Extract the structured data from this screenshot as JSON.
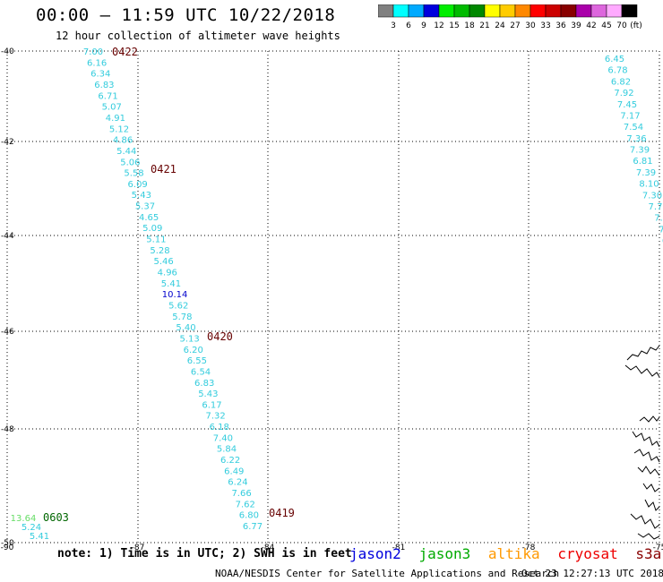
{
  "header": {
    "title": "00:00 – 11:59 UTC 10/22/2018",
    "subtitle": "12 hour collection of altimeter wave heights"
  },
  "colorbar": {
    "unit": "(ft)",
    "swatches": [
      {
        "color": "#808080",
        "label": "3"
      },
      {
        "color": "#00ffff",
        "label": "6"
      },
      {
        "color": "#00aaff",
        "label": "9"
      },
      {
        "color": "#0000dd",
        "label": "12"
      },
      {
        "color": "#00ee00",
        "label": "15"
      },
      {
        "color": "#00bb00",
        "label": "18"
      },
      {
        "color": "#008800",
        "label": "21"
      },
      {
        "color": "#ffff00",
        "label": "24"
      },
      {
        "color": "#ffcc00",
        "label": "27"
      },
      {
        "color": "#ff8800",
        "label": "30"
      },
      {
        "color": "#ff0000",
        "label": "33"
      },
      {
        "color": "#cc0000",
        "label": "36"
      },
      {
        "color": "#880000",
        "label": "39"
      },
      {
        "color": "#aa00aa",
        "label": "42"
      },
      {
        "color": "#dd66dd",
        "label": "45"
      },
      {
        "color": "#ffaaff",
        "label": "70"
      },
      {
        "color": "#000000",
        "label": ""
      }
    ]
  },
  "axes": {
    "lon_ticks": [
      "-90",
      "-87",
      "-84",
      "-81",
      "-78",
      "-75"
    ],
    "lat_ticks": [
      "-40",
      "-42",
      "-44",
      "-46",
      "-48",
      "-50"
    ]
  },
  "colors": {
    "light_cyan": "#33ccdd",
    "mid_blue": "#0000cc",
    "dark_red": "#660000",
    "dark_green": "#006600",
    "light_green": "#66dd66",
    "jason2": "#0000dd",
    "jason3": "#00aa00",
    "altika": "#ff9900",
    "cryosat": "#ee0000",
    "s3a": "#880000"
  },
  "passes": [
    {
      "time": "0422",
      "color": "dark_red"
    },
    {
      "time": "0421",
      "color": "dark_red"
    },
    {
      "time": "0420",
      "color": "dark_red"
    },
    {
      "time": "0419",
      "color": "dark_red"
    },
    {
      "time": "0603",
      "color": "dark_green"
    }
  ],
  "tracks": {
    "main": [
      {
        "v": "7.00",
        "c": "light_cyan"
      },
      {
        "v": "6.16",
        "c": "light_cyan"
      },
      {
        "v": "6.34",
        "c": "light_cyan"
      },
      {
        "v": "6.83",
        "c": "light_cyan"
      },
      {
        "v": "6.71",
        "c": "light_cyan"
      },
      {
        "v": "5.07",
        "c": "light_cyan"
      },
      {
        "v": "4.91",
        "c": "light_cyan"
      },
      {
        "v": "5.12",
        "c": "light_cyan"
      },
      {
        "v": "4.86",
        "c": "light_cyan"
      },
      {
        "v": "5.44",
        "c": "light_cyan"
      },
      {
        "v": "5.06",
        "c": "light_cyan"
      },
      {
        "v": "5.58",
        "c": "light_cyan"
      },
      {
        "v": "6.09",
        "c": "light_cyan"
      },
      {
        "v": "5.43",
        "c": "light_cyan"
      },
      {
        "v": "5.37",
        "c": "light_cyan"
      },
      {
        "v": "4.65",
        "c": "light_cyan"
      },
      {
        "v": "5.09",
        "c": "light_cyan"
      },
      {
        "v": "5.11",
        "c": "light_cyan"
      },
      {
        "v": "5.28",
        "c": "light_cyan"
      },
      {
        "v": "5.46",
        "c": "light_cyan"
      },
      {
        "v": "4.96",
        "c": "light_cyan"
      },
      {
        "v": "5.41",
        "c": "light_cyan"
      },
      {
        "v": "10.14",
        "c": "mid_blue"
      },
      {
        "v": "5.62",
        "c": "light_cyan"
      },
      {
        "v": "5.78",
        "c": "light_cyan"
      },
      {
        "v": "5.40",
        "c": "light_cyan"
      },
      {
        "v": "5.13",
        "c": "light_cyan"
      },
      {
        "v": "6.20",
        "c": "light_cyan"
      },
      {
        "v": "6.55",
        "c": "light_cyan"
      },
      {
        "v": "6.54",
        "c": "light_cyan"
      },
      {
        "v": "6.83",
        "c": "light_cyan"
      },
      {
        "v": "5.43",
        "c": "light_cyan"
      },
      {
        "v": "6.17",
        "c": "light_cyan"
      },
      {
        "v": "7.32",
        "c": "light_cyan"
      },
      {
        "v": "6.18",
        "c": "light_cyan"
      },
      {
        "v": "7.40",
        "c": "light_cyan"
      },
      {
        "v": "5.84",
        "c": "light_cyan"
      },
      {
        "v": "6.22",
        "c": "light_cyan"
      },
      {
        "v": "6.49",
        "c": "light_cyan"
      },
      {
        "v": "6.24",
        "c": "light_cyan"
      },
      {
        "v": "7.66",
        "c": "light_cyan"
      },
      {
        "v": "7.62",
        "c": "light_cyan"
      },
      {
        "v": "6.80",
        "c": "light_cyan"
      },
      {
        "v": "6.77",
        "c": "light_cyan"
      }
    ],
    "right": [
      {
        "v": "6.45",
        "c": "light_cyan"
      },
      {
        "v": "6.78",
        "c": "light_cyan"
      },
      {
        "v": "6.82",
        "c": "light_cyan"
      },
      {
        "v": "7.92",
        "c": "light_cyan"
      },
      {
        "v": "7.45",
        "c": "light_cyan"
      },
      {
        "v": "7.17",
        "c": "light_cyan"
      },
      {
        "v": "7.54",
        "c": "light_cyan"
      },
      {
        "v": "7.36",
        "c": "light_cyan"
      },
      {
        "v": "7.39",
        "c": "light_cyan"
      },
      {
        "v": "6.81",
        "c": "light_cyan"
      },
      {
        "v": "7.39",
        "c": "light_cyan"
      },
      {
        "v": "8.10",
        "c": "light_cyan"
      },
      {
        "v": "7.30",
        "c": "light_cyan"
      },
      {
        "v": "7.7",
        "c": "light_cyan"
      },
      {
        "v": "7.",
        "c": "light_cyan"
      },
      {
        "v": "7",
        "c": "light_cyan"
      },
      {
        "v": "6",
        "c": "light_cyan"
      }
    ],
    "bottom_left": [
      {
        "v": "13.64",
        "c": "light_green"
      },
      {
        "v": "5.24",
        "c": "light_cyan"
      },
      {
        "v": "5.41",
        "c": "light_cyan"
      }
    ]
  },
  "footer": {
    "note": "note: 1) Time is in UTC; 2) SWH is in feet",
    "satellites": [
      {
        "name": "jason2",
        "color": "jason2"
      },
      {
        "name": "jason3",
        "color": "jason3"
      },
      {
        "name": "altika",
        "color": "altika"
      },
      {
        "name": "cryosat",
        "color": "cryosat"
      },
      {
        "name": "s3a",
        "color": "s3a"
      }
    ],
    "credit": "NOAA/NESDIS Center for Satellite Applications and Research",
    "timestamp": "Oct 23 12:27:13 UTC 2018"
  }
}
